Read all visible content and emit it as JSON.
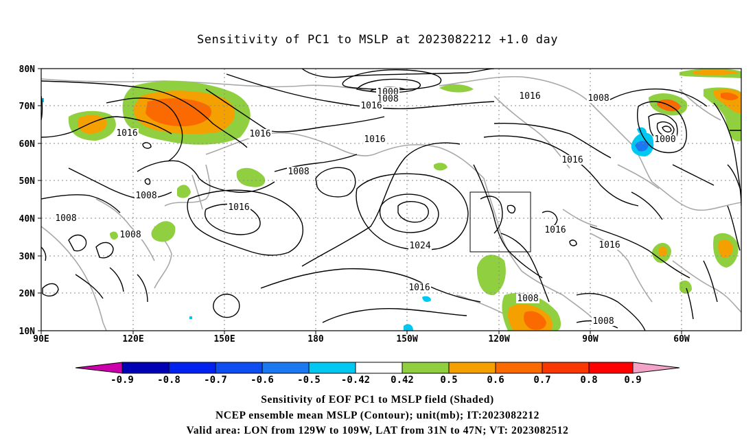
{
  "title": "Sensitivity of PC1 to MSLP at 2023082212 +1.0 day",
  "latitude_labels": [
    "80N",
    "70N",
    "60N",
    "50N",
    "40N",
    "30N",
    "20N",
    "10N"
  ],
  "longitude_labels": [
    "90E",
    "120E",
    "150E",
    "180",
    "150W",
    "120W",
    "90W",
    "60W"
  ],
  "contour_labels": [
    {
      "text": "1000"
    },
    {
      "text": "1008"
    },
    {
      "text": "1016"
    },
    {
      "text": "1016"
    },
    {
      "text": "1008"
    },
    {
      "text": "1016"
    },
    {
      "text": "1000"
    },
    {
      "text": "1016"
    },
    {
      "text": "1016"
    },
    {
      "text": "1008"
    },
    {
      "text": "1016"
    },
    {
      "text": "1008"
    },
    {
      "text": "1008"
    },
    {
      "text": "1008"
    },
    {
      "text": "1016"
    },
    {
      "text": "1024"
    },
    {
      "text": "1016"
    },
    {
      "text": "1016"
    },
    {
      "text": "1016"
    },
    {
      "text": "1008"
    },
    {
      "text": "1008"
    }
  ],
  "colorbar": {
    "labels": [
      "-0.9",
      "-0.8",
      "-0.7",
      "-0.6",
      "-0.5",
      "-0.42",
      "0.42",
      "0.5",
      "0.6",
      "0.7",
      "0.8",
      "0.9"
    ],
    "colors": [
      "#cc00aa",
      "#0000b4",
      "#0022ee",
      "#0e4ef0",
      "#1c78f0",
      "#00c8f0",
      "#ffffff",
      "#90d040",
      "#f4a000",
      "#fa6a00",
      "#f83800",
      "#ff0000",
      "#f3a2c8"
    ]
  },
  "captions": {
    "line1": "Sensitivity of EOF PC1 to MSLP field (Shaded)",
    "line2": "NCEP ensemble mean MSLP (Contour); unit(mb); IT:2023082212",
    "line3": "Valid area: LON from 129W to 109W, LAT from 31N to 47N; VT: 2023082512"
  }
}
